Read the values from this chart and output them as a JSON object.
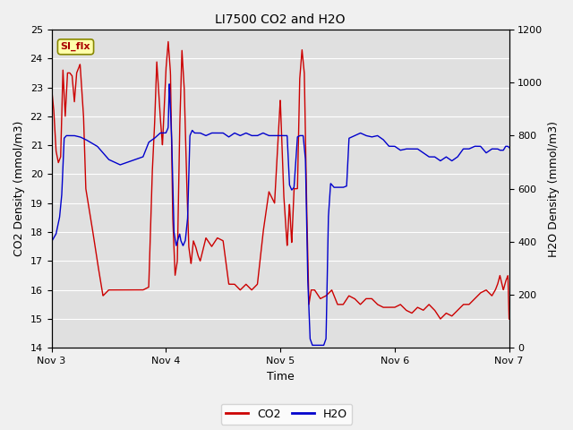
{
  "title": "LI7500 CO2 and H2O",
  "xlabel": "Time",
  "ylabel_left": "CO2 Density (mmol/m3)",
  "ylabel_right": "H2O Density (mmol/m3)",
  "ylim_left": [
    14.0,
    25.0
  ],
  "ylim_right": [
    0,
    1200
  ],
  "yticks_left": [
    14.0,
    15.0,
    16.0,
    17.0,
    18.0,
    19.0,
    20.0,
    21.0,
    22.0,
    23.0,
    24.0,
    25.0
  ],
  "yticks_right": [
    0,
    200,
    400,
    600,
    800,
    1000,
    1200
  ],
  "xtick_labels": [
    "Nov 3",
    "Nov 4",
    "Nov 5",
    "Nov 6",
    "Nov 7"
  ],
  "figure_bg": "#f0f0f0",
  "plot_bg_color": "#e0e0e0",
  "grid_color": "#ffffff",
  "co2_color": "#cc0000",
  "h2o_color": "#0000cc",
  "legend_label_co2": "CO2",
  "legend_label_h2o": "H2O",
  "annotation_text": "SI_flx",
  "annotation_bg": "#ffffaa",
  "annotation_border": "#cc0000",
  "co2_kp_t": [
    0.0,
    0.02,
    0.04,
    0.06,
    0.08,
    0.1,
    0.12,
    0.14,
    0.16,
    0.18,
    0.2,
    0.22,
    0.25,
    0.28,
    0.3,
    0.35,
    0.4,
    0.45,
    0.5,
    0.55,
    0.6,
    0.65,
    0.7,
    0.75,
    0.8,
    0.85,
    0.88,
    0.9,
    0.92,
    0.95,
    0.97,
    1.0,
    1.02,
    1.04,
    1.06,
    1.08,
    1.1,
    1.12,
    1.14,
    1.16,
    1.18,
    1.2,
    1.22,
    1.24,
    1.26,
    1.28,
    1.3,
    1.35,
    1.4,
    1.45,
    1.5,
    1.55,
    1.6,
    1.65,
    1.7,
    1.75,
    1.8,
    1.85,
    1.9,
    1.95,
    2.0,
    2.03,
    2.06,
    2.08,
    2.1,
    2.12,
    2.15,
    2.17,
    2.19,
    2.21,
    2.23,
    2.25,
    2.27,
    2.3,
    2.35,
    2.4,
    2.45,
    2.5,
    2.55,
    2.6,
    2.65,
    2.7,
    2.75,
    2.8,
    2.85,
    2.9,
    2.95,
    3.0,
    3.05,
    3.1,
    3.15,
    3.2,
    3.25,
    3.3,
    3.35,
    3.4,
    3.45,
    3.5,
    3.55,
    3.6,
    3.65,
    3.7,
    3.75,
    3.8,
    3.85,
    3.88,
    3.9,
    3.92,
    3.95,
    3.97,
    3.99,
    4.0
  ],
  "co2_kp_v": [
    23.0,
    22.2,
    20.8,
    20.4,
    20.6,
    23.6,
    22.0,
    23.5,
    23.5,
    23.4,
    22.5,
    23.5,
    23.8,
    22.0,
    19.5,
    18.3,
    17.0,
    15.8,
    16.0,
    16.0,
    16.0,
    16.0,
    16.0,
    16.0,
    16.0,
    16.1,
    20.0,
    21.6,
    23.9,
    22.0,
    21.0,
    23.6,
    24.6,
    23.5,
    18.5,
    16.5,
    17.0,
    21.5,
    24.3,
    23.0,
    20.0,
    17.5,
    16.9,
    17.7,
    17.5,
    17.2,
    17.0,
    17.8,
    17.5,
    17.8,
    17.7,
    16.2,
    16.2,
    16.0,
    16.2,
    16.0,
    16.2,
    18.0,
    19.4,
    19.0,
    22.6,
    19.3,
    17.5,
    19.0,
    17.6,
    19.5,
    19.5,
    23.3,
    24.3,
    23.5,
    19.0,
    15.5,
    16.0,
    16.0,
    15.7,
    15.8,
    16.0,
    15.5,
    15.5,
    15.8,
    15.7,
    15.5,
    15.7,
    15.7,
    15.5,
    15.4,
    15.4,
    15.4,
    15.5,
    15.3,
    15.2,
    15.4,
    15.3,
    15.5,
    15.3,
    15.0,
    15.2,
    15.1,
    15.3,
    15.5,
    15.5,
    15.7,
    15.9,
    16.0,
    15.8,
    16.0,
    16.2,
    16.5,
    16.0,
    16.3,
    16.5,
    15.0
  ],
  "h2o_kp_t": [
    0.0,
    0.04,
    0.07,
    0.09,
    0.11,
    0.13,
    0.15,
    0.2,
    0.25,
    0.3,
    0.4,
    0.5,
    0.6,
    0.7,
    0.8,
    0.85,
    0.9,
    0.95,
    1.0,
    1.02,
    1.03,
    1.05,
    1.07,
    1.09,
    1.1,
    1.12,
    1.13,
    1.15,
    1.17,
    1.19,
    1.21,
    1.23,
    1.25,
    1.3,
    1.35,
    1.4,
    1.45,
    1.5,
    1.55,
    1.6,
    1.65,
    1.7,
    1.75,
    1.8,
    1.85,
    1.9,
    1.95,
    2.0,
    2.03,
    2.06,
    2.08,
    2.1,
    2.12,
    2.15,
    2.17,
    2.2,
    2.22,
    2.24,
    2.26,
    2.28,
    2.3,
    2.35,
    2.38,
    2.4,
    2.42,
    2.44,
    2.47,
    2.5,
    2.55,
    2.58,
    2.6,
    2.65,
    2.7,
    2.75,
    2.8,
    2.85,
    2.9,
    2.95,
    3.0,
    3.05,
    3.1,
    3.15,
    3.2,
    3.25,
    3.3,
    3.35,
    3.4,
    3.45,
    3.5,
    3.55,
    3.6,
    3.65,
    3.7,
    3.75,
    3.8,
    3.85,
    3.9,
    3.92,
    3.95,
    3.97,
    3.99,
    4.0
  ],
  "h2o_kp_v": [
    400,
    430,
    490,
    580,
    790,
    800,
    800,
    800,
    795,
    785,
    760,
    710,
    690,
    705,
    720,
    775,
    790,
    810,
    810,
    830,
    1000,
    800,
    440,
    385,
    400,
    430,
    405,
    385,
    405,
    490,
    800,
    820,
    810,
    810,
    800,
    810,
    810,
    810,
    795,
    810,
    800,
    810,
    800,
    800,
    810,
    800,
    800,
    800,
    800,
    800,
    615,
    595,
    605,
    795,
    800,
    800,
    710,
    260,
    35,
    10,
    10,
    10,
    10,
    35,
    490,
    620,
    605,
    605,
    605,
    610,
    790,
    800,
    810,
    800,
    795,
    800,
    785,
    760,
    760,
    745,
    750,
    750,
    750,
    735,
    720,
    720,
    705,
    720,
    705,
    720,
    750,
    750,
    760,
    760,
    735,
    750,
    750,
    745,
    745,
    760,
    760,
    755
  ]
}
